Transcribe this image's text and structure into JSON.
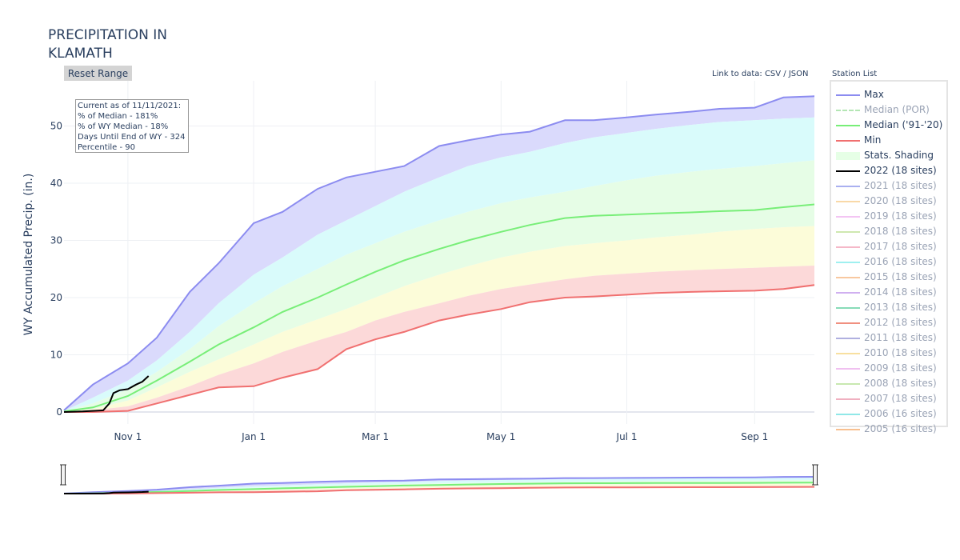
{
  "title": "PRECIPITATION IN\nKLAMATH",
  "reset_button": "Reset Range",
  "data_links": {
    "prefix": "Link to data: ",
    "csv": "CSV",
    "separator": " / ",
    "json": "JSON"
  },
  "station_list_title": "Station List",
  "info_box": {
    "line1": "Current as of 11/11/2021:",
    "line2": "% of Median - 181%",
    "line3": "% of WY Median - 18%",
    "line4": "Days Until End of WY - 324",
    "line5": "Percentile - 90"
  },
  "legend": [
    {
      "label": "Max",
      "color": "#8c8cf0",
      "style": "line",
      "muted": false
    },
    {
      "label": "Median (POR)",
      "color": "#b4e6b4",
      "style": "dash",
      "muted": true
    },
    {
      "label": "Median ('91-'20)",
      "color": "#78ee78",
      "style": "line",
      "muted": false
    },
    {
      "label": "Min",
      "color": "#f07070",
      "style": "line",
      "muted": false
    },
    {
      "label": "Stats. Shading",
      "color": "#e6ffe6",
      "style": "fill",
      "muted": false
    },
    {
      "label": "2022 (18 sites)",
      "color": "#000000",
      "style": "line",
      "muted": false
    },
    {
      "label": "2021 (18 sites)",
      "color": "#aab0f0",
      "style": "line",
      "muted": true
    },
    {
      "label": "2020 (18 sites)",
      "color": "#f9d9a8",
      "style": "line",
      "muted": true
    },
    {
      "label": "2019 (18 sites)",
      "color": "#f3c5f3",
      "style": "line",
      "muted": true
    },
    {
      "label": "2018 (18 sites)",
      "color": "#cfe8b0",
      "style": "line",
      "muted": true
    },
    {
      "label": "2017 (18 sites)",
      "color": "#f5b8c8",
      "style": "line",
      "muted": true
    },
    {
      "label": "2016 (18 sites)",
      "color": "#9ff0f0",
      "style": "line",
      "muted": true
    },
    {
      "label": "2015 (18 sites)",
      "color": "#f8c8a0",
      "style": "line",
      "muted": true
    },
    {
      "label": "2014 (18 sites)",
      "color": "#d0b0f0",
      "style": "line",
      "muted": true
    },
    {
      "label": "2013 (18 sites)",
      "color": "#88dcb8",
      "style": "line",
      "muted": true
    },
    {
      "label": "2012 (18 sites)",
      "color": "#f09080",
      "style": "line",
      "muted": true
    },
    {
      "label": "2011 (18 sites)",
      "color": "#b0b0e0",
      "style": "line",
      "muted": true
    },
    {
      "label": "2010 (18 sites)",
      "color": "#f8e0a0",
      "style": "line",
      "muted": true
    },
    {
      "label": "2009 (18 sites)",
      "color": "#f0c0f0",
      "style": "line",
      "muted": true
    },
    {
      "label": "2008 (18 sites)",
      "color": "#c8e8b0",
      "style": "line",
      "muted": true
    },
    {
      "label": "2007 (18 sites)",
      "color": "#f0b0c0",
      "style": "line",
      "muted": true
    },
    {
      "label": "2006 (16 sites)",
      "color": "#90e8e8",
      "style": "line",
      "muted": true
    },
    {
      "label": "2005 (16 sites)",
      "color": "#f8c090",
      "style": "line",
      "muted": true
    }
  ],
  "chart_data": {
    "type": "area",
    "title": "PRECIPITATION IN\nKLAMATH",
    "ylabel": "WY Accumulated Precip. (in.)",
    "xlabel": "",
    "x_ticks": [
      "Nov 1",
      "Jan 1",
      "Mar 1",
      "May 1",
      "Jul 1",
      "Sep 1"
    ],
    "y_ticks": [
      0,
      10,
      20,
      30,
      40,
      50
    ],
    "ylim": [
      -1,
      58
    ],
    "x_dates": [
      "10/1",
      "10/15",
      "11/1",
      "11/15",
      "12/1",
      "12/15",
      "1/1",
      "1/15",
      "2/1",
      "2/15",
      "3/1",
      "3/15",
      "4/1",
      "4/15",
      "5/1",
      "5/15",
      "6/1",
      "6/15",
      "7/1",
      "7/15",
      "8/1",
      "8/15",
      "9/1",
      "9/15",
      "9/30"
    ],
    "bands": {
      "max": [
        0.3,
        4.8,
        8.5,
        13.0,
        21.0,
        26.0,
        33.0,
        35.0,
        39.0,
        41.0,
        42.0,
        43.0,
        46.5,
        47.5,
        48.5,
        49.0,
        51.0,
        51.0,
        51.5,
        52.0,
        52.5,
        53.0,
        53.2,
        55.0,
        55.2
      ],
      "p90": [
        0.2,
        2.5,
        5.5,
        9.0,
        14.0,
        19.0,
        24.0,
        27.0,
        31.0,
        33.5,
        36.0,
        38.5,
        41.0,
        43.0,
        44.5,
        45.5,
        47.0,
        48.0,
        48.8,
        49.5,
        50.2,
        50.7,
        51.0,
        51.3,
        51.5
      ],
      "p70": [
        0.15,
        1.5,
        4.0,
        7.0,
        11.0,
        15.0,
        19.0,
        22.0,
        25.0,
        27.5,
        29.5,
        31.5,
        33.5,
        35.0,
        36.5,
        37.5,
        38.5,
        39.5,
        40.5,
        41.3,
        42.0,
        42.5,
        43.0,
        43.5,
        44.0
      ],
      "median": [
        0.1,
        0.8,
        2.8,
        5.5,
        8.8,
        11.8,
        14.8,
        17.5,
        20.0,
        22.3,
        24.5,
        26.5,
        28.5,
        30.0,
        31.5,
        32.7,
        33.9,
        34.3,
        34.5,
        34.7,
        34.9,
        35.1,
        35.3,
        35.8,
        36.3
      ],
      "p30": [
        0.05,
        0.5,
        2.0,
        4.3,
        7.0,
        9.2,
        11.8,
        14.0,
        16.2,
        18.0,
        20.0,
        22.0,
        24.0,
        25.5,
        27.0,
        28.0,
        29.0,
        29.5,
        30.0,
        30.5,
        31.0,
        31.5,
        32.0,
        32.3,
        32.5
      ],
      "p10": [
        0.0,
        0.3,
        1.0,
        2.5,
        4.5,
        6.5,
        8.5,
        10.5,
        12.5,
        14.0,
        16.0,
        17.5,
        19.0,
        20.3,
        21.5,
        22.3,
        23.2,
        23.8,
        24.2,
        24.5,
        24.8,
        25.0,
        25.2,
        25.4,
        25.6
      ],
      "min": [
        0.0,
        0.0,
        0.2,
        1.5,
        3.0,
        4.3,
        4.5,
        6.0,
        7.5,
        11.0,
        12.7,
        14.0,
        16.0,
        17.0,
        18.0,
        19.2,
        20.0,
        20.2,
        20.5,
        20.8,
        21.0,
        21.1,
        21.2,
        21.5,
        22.2
      ]
    },
    "series": [
      {
        "name": "2022 (18 sites)",
        "x_dates": [
          "10/1",
          "10/10",
          "10/20",
          "10/23",
          "10/25",
          "10/28",
          "11/1",
          "11/5",
          "11/8",
          "11/11"
        ],
        "values": [
          0.0,
          0.1,
          0.3,
          1.5,
          3.3,
          3.8,
          4.0,
          4.8,
          5.3,
          6.3
        ]
      }
    ],
    "colors": {
      "max": "#8c8cf0",
      "median": "#78ee78",
      "min": "#f07070",
      "current": "#000000",
      "fill_top": "#dadafc",
      "fill_p90": "#d9fbfb",
      "fill_p70": "#e6fde6",
      "fill_p30": "#fcfcd9",
      "fill_p10": "#fcd9d9"
    }
  }
}
